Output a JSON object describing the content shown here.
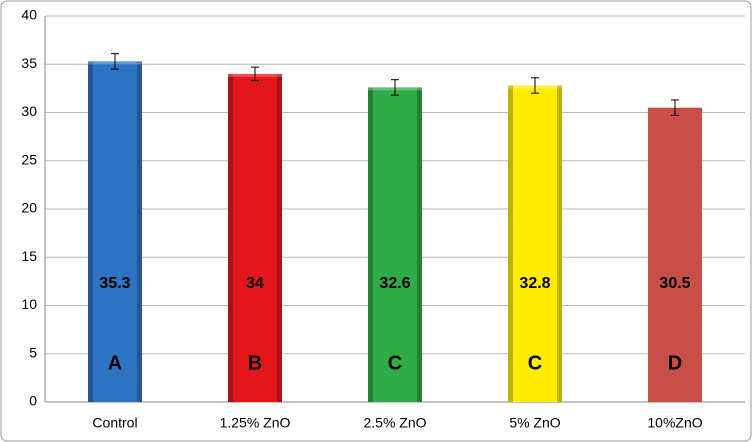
{
  "chart_data": {
    "type": "bar",
    "categories": [
      "Control",
      "1.25% ZnO",
      "2.5% ZnO",
      "5% ZnO",
      "10%ZnO"
    ],
    "values": [
      35.3,
      34,
      32.6,
      32.8,
      30.5
    ],
    "errors": [
      0.8,
      0.7,
      0.8,
      0.8,
      0.8
    ],
    "letters": [
      "A",
      "B",
      "C",
      "C",
      "D"
    ],
    "colors": [
      "#2e74c4",
      "#e3161c",
      "#2fab47",
      "#ffec00",
      "#c74f48"
    ],
    "ylim": [
      0,
      40
    ],
    "yticks": [
      0,
      5,
      10,
      15,
      20,
      25,
      30,
      35,
      40
    ],
    "grid": true
  }
}
